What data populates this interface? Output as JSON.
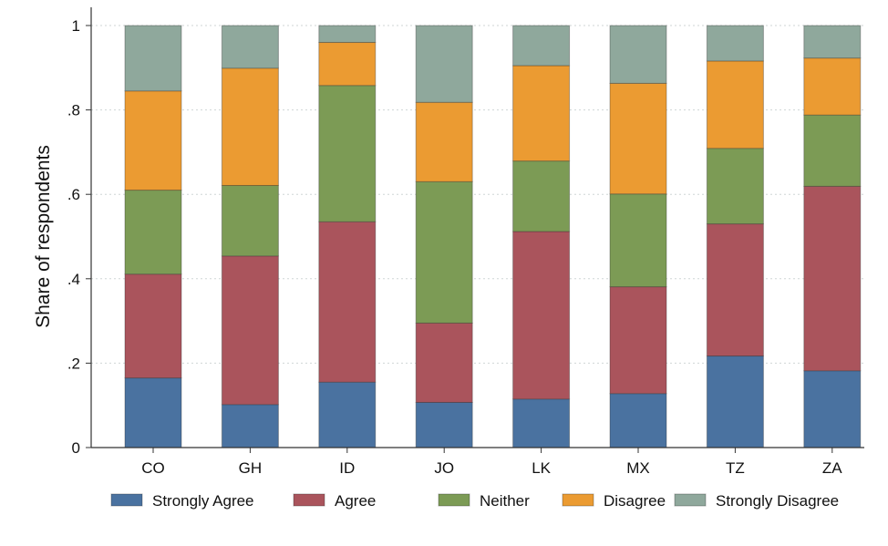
{
  "chart_data": {
    "type": "bar",
    "stacked": true,
    "title": "",
    "xlabel": "",
    "ylabel": "Share of respondents",
    "ylim": [
      0,
      1
    ],
    "yticks": [
      {
        "value": 0,
        "label": "0"
      },
      {
        "value": 0.2,
        "label": ".2"
      },
      {
        "value": 0.4,
        "label": ".4"
      },
      {
        "value": 0.6,
        "label": ".6"
      },
      {
        "value": 0.8,
        "label": ".8"
      },
      {
        "value": 1,
        "label": "1"
      }
    ],
    "grid": true,
    "legend_position": "bottom",
    "categories": [
      "CO",
      "GH",
      "ID",
      "JO",
      "LK",
      "MX",
      "TZ",
      "ZA"
    ],
    "series": [
      {
        "name": "Strongly Agree",
        "color": "#4a72a0",
        "values": [
          0.165,
          0.102,
          0.155,
          0.107,
          0.115,
          0.128,
          0.217,
          0.182
        ]
      },
      {
        "name": "Agree",
        "color": "#aa545c",
        "values": [
          0.246,
          0.352,
          0.38,
          0.188,
          0.397,
          0.253,
          0.313,
          0.437
        ]
      },
      {
        "name": "Neither",
        "color": "#7c9b55",
        "values": [
          0.199,
          0.167,
          0.323,
          0.335,
          0.167,
          0.22,
          0.179,
          0.169
        ]
      },
      {
        "name": "Disagree",
        "color": "#eb9b32",
        "values": [
          0.235,
          0.278,
          0.102,
          0.188,
          0.226,
          0.262,
          0.207,
          0.135
        ]
      },
      {
        "name": "Strongly Disagree",
        "color": "#8fa89c",
        "values": [
          0.155,
          0.101,
          0.04,
          0.182,
          0.095,
          0.137,
          0.084,
          0.077
        ]
      }
    ]
  }
}
